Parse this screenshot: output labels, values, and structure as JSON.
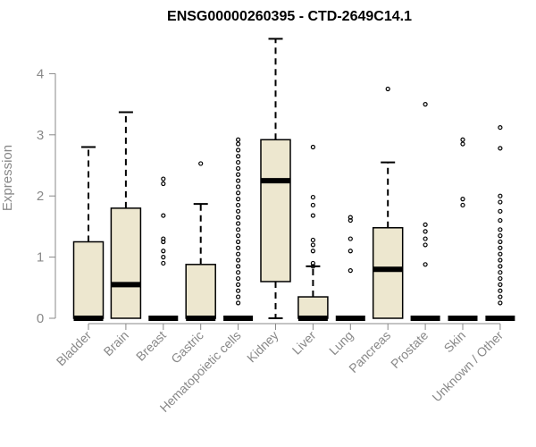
{
  "chart_data": {
    "type": "boxplot",
    "title": "ENSG00000260395 - CTD-2649C14.1",
    "xlabel": "",
    "ylabel": "Expression",
    "ylim": [
      0,
      4.6
    ],
    "yticks": [
      0,
      1,
      2,
      3,
      4
    ],
    "colors": {
      "box_fill": "#EDE7CF",
      "stroke": "#000000",
      "axis_text": "#888888"
    },
    "categories": [
      "Bladder",
      "Brain",
      "Breast",
      "Gastric",
      "Hematopoietic cells",
      "Kidney",
      "Liver",
      "Lung",
      "Pancreas",
      "Prostate",
      "Skin",
      "Unknown / Other"
    ],
    "boxes": [
      {
        "category": "Bladder",
        "q1": 0,
        "median": 0,
        "q3": 1.25,
        "whisker_low": 0,
        "whisker_high": 2.8,
        "outliers": []
      },
      {
        "category": "Brain",
        "q1": 0,
        "median": 0.55,
        "q3": 1.8,
        "whisker_low": 0,
        "whisker_high": 3.37,
        "outliers": []
      },
      {
        "category": "Breast",
        "q1": 0,
        "median": 0,
        "q3": 0,
        "whisker_low": 0,
        "whisker_high": 0,
        "outliers": [
          0.9,
          1.0,
          1.1,
          1.25,
          1.3,
          1.68,
          2.2,
          2.28
        ]
      },
      {
        "category": "Gastric",
        "q1": 0,
        "median": 0,
        "q3": 0.88,
        "whisker_low": 0,
        "whisker_high": 1.87,
        "outliers": [
          2.53
        ]
      },
      {
        "category": "Hematopoietic cells",
        "q1": 0,
        "median": 0,
        "q3": 0,
        "whisker_low": 0,
        "whisker_high": 0,
        "outliers": [
          0.25,
          0.35,
          0.45,
          0.55,
          0.65,
          0.75,
          0.85,
          0.95,
          1.05,
          1.15,
          1.25,
          1.35,
          1.45,
          1.55,
          1.65,
          1.75,
          1.85,
          1.95,
          2.05,
          2.15,
          2.25,
          2.35,
          2.45,
          2.55,
          2.65,
          2.75,
          2.85,
          2.92
        ]
      },
      {
        "category": "Kidney",
        "q1": 0.6,
        "median": 2.25,
        "q3": 2.92,
        "whisker_low": 0,
        "whisker_high": 4.57,
        "outliers": []
      },
      {
        "category": "Liver",
        "q1": 0,
        "median": 0,
        "q3": 0.35,
        "whisker_low": 0,
        "whisker_high": 0.85,
        "outliers": [
          0.85,
          0.9,
          1.1,
          1.2,
          1.28,
          1.68,
          1.85,
          1.98,
          2.8
        ]
      },
      {
        "category": "Lung",
        "q1": 0,
        "median": 0,
        "q3": 0,
        "whisker_low": 0,
        "whisker_high": 0,
        "outliers": [
          0.78,
          1.1,
          1.3,
          1.6,
          1.65
        ]
      },
      {
        "category": "Pancreas",
        "q1": 0,
        "median": 0.8,
        "q3": 1.48,
        "whisker_low": 0,
        "whisker_high": 2.55,
        "outliers": [
          3.75
        ]
      },
      {
        "category": "Prostate",
        "q1": 0,
        "median": 0,
        "q3": 0,
        "whisker_low": 0,
        "whisker_high": 0,
        "outliers": [
          0.88,
          1.2,
          1.3,
          1.42,
          1.53,
          3.5
        ]
      },
      {
        "category": "Skin",
        "q1": 0,
        "median": 0,
        "q3": 0,
        "whisker_low": 0,
        "whisker_high": 0,
        "outliers": [
          1.85,
          1.95,
          2.85,
          2.92
        ]
      },
      {
        "category": "Unknown / Other",
        "q1": 0,
        "median": 0,
        "q3": 0,
        "whisker_low": 0,
        "whisker_high": 0,
        "outliers": [
          0.25,
          0.35,
          0.45,
          0.55,
          0.65,
          0.75,
          0.85,
          0.95,
          1.05,
          1.15,
          1.25,
          1.35,
          1.45,
          1.6,
          1.75,
          1.9,
          2.0,
          2.78,
          3.12
        ]
      }
    ]
  }
}
